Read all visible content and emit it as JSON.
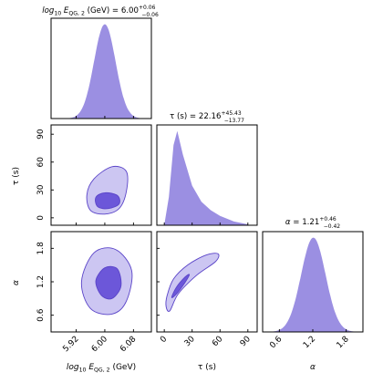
{
  "chart_data": {
    "type": "corner",
    "colors": {
      "fill": "#9b8fe2",
      "fill_light": "#ccc6f2",
      "fill_dark": "#6c57d9",
      "edge": "#5a44c8"
    },
    "parameters": [
      {
        "key": "logE",
        "label": "log10 E_QG,2 (GeV)",
        "title_value": "6.00",
        "title_upper": "+0.06",
        "title_lower": "−0.06",
        "range": [
          5.85,
          6.13
        ],
        "ticks": [
          5.92,
          6.0,
          6.08
        ],
        "tick_labels": [
          "5.92",
          "6.00",
          "6.08"
        ],
        "median": 6.0,
        "err_lower": 0.06,
        "err_upper": 0.06
      },
      {
        "key": "tau",
        "label": "τ (s)",
        "title_value": "22.16",
        "title_upper": "+45.43",
        "title_lower": "−13.77",
        "range": [
          -8,
          100
        ],
        "ticks": [
          0,
          30,
          60,
          90
        ],
        "tick_labels": [
          "0",
          "30",
          "60",
          "90"
        ],
        "median": 22.16,
        "err_lower": 13.77,
        "err_upper": 45.43
      },
      {
        "key": "alpha",
        "label": "α",
        "title_value": "1.21",
        "title_upper": "+0.46",
        "title_lower": "−0.42",
        "range": [
          0.3,
          2.1
        ],
        "ticks": [
          0.6,
          1.2,
          1.8
        ],
        "tick_labels": [
          "0.6",
          "1.2",
          "1.8"
        ],
        "median": 1.21,
        "err_lower": 0.42,
        "err_upper": 0.46
      }
    ],
    "marginals": {
      "logE": {
        "type": "gaussian",
        "center": 6.0,
        "sigma": 0.03
      },
      "tau": {
        "type": "skewed",
        "peak": 14,
        "x": [
          0,
          5,
          10,
          14,
          20,
          30,
          40,
          50,
          60,
          75,
          90
        ],
        "density": [
          0.0,
          0.3,
          0.85,
          1.0,
          0.75,
          0.42,
          0.25,
          0.16,
          0.1,
          0.04,
          0.01
        ]
      },
      "alpha": {
        "type": "gaussian",
        "center": 1.21,
        "sigma": 0.22
      }
    },
    "contours_2d": {
      "tau_vs_logE": {
        "outer": [
          [
            5.96,
            8
          ],
          [
            5.95,
            25
          ],
          [
            5.97,
            42
          ],
          [
            6.02,
            55
          ],
          [
            6.06,
            50
          ],
          [
            6.06,
            28
          ],
          [
            6.04,
            10
          ],
          [
            6.0,
            4
          ]
        ],
        "inner": [
          [
            5.98,
            12
          ],
          [
            5.975,
            22
          ],
          [
            6.0,
            27
          ],
          [
            6.035,
            24
          ],
          [
            6.04,
            15
          ],
          [
            6.01,
            10
          ]
        ]
      },
      "alpha_vs_logE": {
        "outer": [
          [
            5.96,
            0.72
          ],
          [
            5.935,
            1.2
          ],
          [
            5.97,
            1.72
          ],
          [
            6.03,
            1.78
          ],
          [
            6.075,
            1.4
          ],
          [
            6.06,
            0.85
          ],
          [
            6.02,
            0.62
          ]
        ],
        "inner": [
          [
            5.99,
            0.96
          ],
          [
            5.975,
            1.22
          ],
          [
            6.0,
            1.45
          ],
          [
            6.035,
            1.43
          ],
          [
            6.045,
            1.12
          ],
          [
            6.02,
            0.9
          ]
        ]
      },
      "alpha_vs_tau": {
        "outer": [
          [
            2,
            0.75
          ],
          [
            3,
            0.95
          ],
          [
            10,
            1.25
          ],
          [
            25,
            1.5
          ],
          [
            45,
            1.68
          ],
          [
            58,
            1.7
          ],
          [
            55,
            1.56
          ],
          [
            35,
            1.32
          ],
          [
            15,
            0.98
          ],
          [
            6,
            0.68
          ]
        ],
        "inner": [
          [
            8,
            0.92
          ],
          [
            13,
            1.1
          ],
          [
            22,
            1.28
          ],
          [
            27,
            1.33
          ],
          [
            22,
            1.18
          ],
          [
            13,
            0.98
          ]
        ]
      }
    }
  }
}
